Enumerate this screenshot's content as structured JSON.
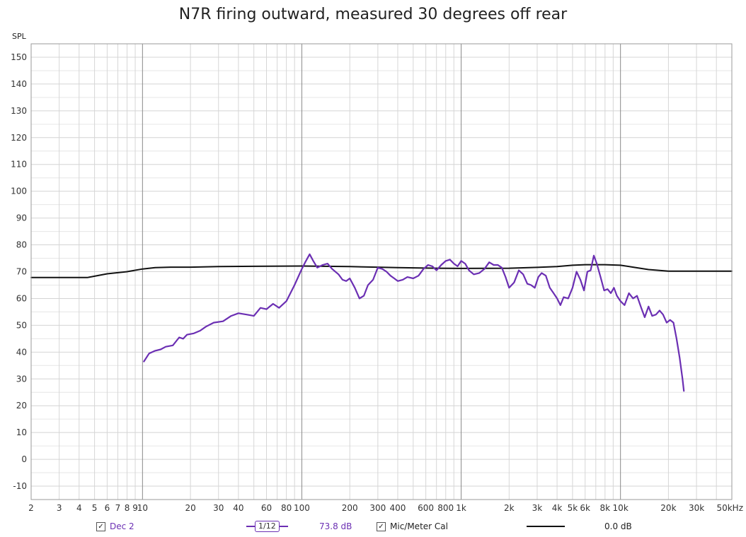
{
  "chart_data": {
    "type": "line",
    "title": "N7R firing outward, measured 30 degrees off rear",
    "ylabel": "SPL",
    "xlabel": "",
    "xscale": "log",
    "xlim": [
      2,
      50000
    ],
    "ylim": [
      -15,
      155
    ],
    "y_ticks": [
      -10,
      0,
      10,
      20,
      30,
      40,
      50,
      60,
      70,
      80,
      90,
      100,
      110,
      120,
      130,
      140,
      150
    ],
    "x_ticks": [
      {
        "v": 2,
        "label": "2"
      },
      {
        "v": 3,
        "label": "3"
      },
      {
        "v": 4,
        "label": "4"
      },
      {
        "v": 5,
        "label": "5"
      },
      {
        "v": 6,
        "label": "6"
      },
      {
        "v": 7,
        "label": "7"
      },
      {
        "v": 8,
        "label": "8"
      },
      {
        "v": 9,
        "label": "9"
      },
      {
        "v": 10,
        "label": "10"
      },
      {
        "v": 20,
        "label": "20"
      },
      {
        "v": 30,
        "label": "30"
      },
      {
        "v": 40,
        "label": "40"
      },
      {
        "v": 60,
        "label": "60"
      },
      {
        "v": 80,
        "label": "80"
      },
      {
        "v": 100,
        "label": "100"
      },
      {
        "v": 200,
        "label": "200"
      },
      {
        "v": 300,
        "label": "300"
      },
      {
        "v": 400,
        "label": "400"
      },
      {
        "v": 600,
        "label": "600"
      },
      {
        "v": 800,
        "label": "800"
      },
      {
        "v": 1000,
        "label": "1k"
      },
      {
        "v": 2000,
        "label": "2k"
      },
      {
        "v": 3000,
        "label": "3k"
      },
      {
        "v": 4000,
        "label": "4k"
      },
      {
        "v": 5000,
        "label": "5k"
      },
      {
        "v": 6000,
        "label": "6k"
      },
      {
        "v": 8000,
        "label": "8k"
      },
      {
        "v": 10000,
        "label": "10k"
      },
      {
        "v": 20000,
        "label": "20k"
      },
      {
        "v": 30000,
        "label": "30k"
      },
      {
        "v": 50000,
        "label": "50kHz"
      }
    ],
    "grid": true,
    "series": [
      {
        "name": "Dec 2",
        "color": "#6b2fb3",
        "points": [
          [
            10.2,
            36.5
          ],
          [
            11,
            39.5
          ],
          [
            12,
            40.5
          ],
          [
            13,
            41
          ],
          [
            14,
            42
          ],
          [
            15.5,
            42.5
          ],
          [
            17,
            45.5
          ],
          [
            18,
            45
          ],
          [
            19,
            46.5
          ],
          [
            21,
            47
          ],
          [
            23,
            48
          ],
          [
            25,
            49.5
          ],
          [
            28,
            51
          ],
          [
            32,
            51.5
          ],
          [
            36,
            53.5
          ],
          [
            40,
            54.5
          ],
          [
            45,
            54
          ],
          [
            50,
            53.5
          ],
          [
            55,
            56.5
          ],
          [
            60,
            56
          ],
          [
            66,
            58
          ],
          [
            72,
            56.5
          ],
          [
            80,
            59
          ],
          [
            90,
            65
          ],
          [
            100,
            71
          ],
          [
            105,
            73.5
          ],
          [
            112,
            76.5
          ],
          [
            118,
            74
          ],
          [
            125,
            71.5
          ],
          [
            135,
            72.5
          ],
          [
            145,
            73
          ],
          [
            155,
            71
          ],
          [
            170,
            69
          ],
          [
            180,
            67
          ],
          [
            190,
            66.5
          ],
          [
            200,
            67.5
          ],
          [
            215,
            64
          ],
          [
            230,
            60
          ],
          [
            245,
            61
          ],
          [
            260,
            65
          ],
          [
            280,
            67
          ],
          [
            300,
            71.5
          ],
          [
            320,
            71
          ],
          [
            340,
            70
          ],
          [
            360,
            68.5
          ],
          [
            380,
            67.5
          ],
          [
            400,
            66.5
          ],
          [
            430,
            67
          ],
          [
            460,
            68
          ],
          [
            500,
            67.5
          ],
          [
            540,
            68.5
          ],
          [
            580,
            71
          ],
          [
            620,
            72.5
          ],
          [
            660,
            72
          ],
          [
            700,
            70.5
          ],
          [
            750,
            72.5
          ],
          [
            800,
            74
          ],
          [
            850,
            74.5
          ],
          [
            900,
            73
          ],
          [
            950,
            72
          ],
          [
            1000,
            74
          ],
          [
            1060,
            73
          ],
          [
            1120,
            70.5
          ],
          [
            1200,
            69
          ],
          [
            1300,
            69.5
          ],
          [
            1400,
            71
          ],
          [
            1500,
            73.5
          ],
          [
            1600,
            72.5
          ],
          [
            1700,
            72.5
          ],
          [
            1800,
            71.5
          ],
          [
            1900,
            68
          ],
          [
            2000,
            64
          ],
          [
            2150,
            66
          ],
          [
            2300,
            70.5
          ],
          [
            2450,
            69
          ],
          [
            2600,
            65.5
          ],
          [
            2750,
            65
          ],
          [
            2900,
            64
          ],
          [
            3050,
            68
          ],
          [
            3200,
            69.5
          ],
          [
            3400,
            68.5
          ],
          [
            3600,
            64
          ],
          [
            3800,
            62
          ],
          [
            4000,
            60
          ],
          [
            4200,
            57.5
          ],
          [
            4400,
            60.5
          ],
          [
            4700,
            60
          ],
          [
            5000,
            64
          ],
          [
            5300,
            70
          ],
          [
            5600,
            67
          ],
          [
            5900,
            63
          ],
          [
            6200,
            70
          ],
          [
            6500,
            70.5
          ],
          [
            6800,
            76
          ],
          [
            7100,
            73
          ],
          [
            7500,
            68
          ],
          [
            7900,
            63
          ],
          [
            8300,
            63.5
          ],
          [
            8700,
            62
          ],
          [
            9100,
            64
          ],
          [
            9500,
            61
          ],
          [
            10000,
            59
          ],
          [
            10600,
            57.5
          ],
          [
            11300,
            62
          ],
          [
            12000,
            60
          ],
          [
            12700,
            61
          ],
          [
            13500,
            56.5
          ],
          [
            14200,
            53
          ],
          [
            15000,
            57
          ],
          [
            15800,
            53.5
          ],
          [
            16700,
            54
          ],
          [
            17600,
            55.5
          ],
          [
            18500,
            54
          ],
          [
            19500,
            51
          ],
          [
            20500,
            52
          ],
          [
            21500,
            51
          ],
          [
            22500,
            45
          ],
          [
            23500,
            38
          ],
          [
            24500,
            30
          ],
          [
            25000,
            25.5
          ]
        ]
      },
      {
        "name": "Mic/Meter Cal",
        "color": "#111111",
        "points": [
          [
            2,
            67.8
          ],
          [
            3,
            67.8
          ],
          [
            4.5,
            67.8
          ],
          [
            5,
            68.3
          ],
          [
            6,
            69.2
          ],
          [
            8,
            70
          ],
          [
            10,
            71
          ],
          [
            12,
            71.5
          ],
          [
            15,
            71.7
          ],
          [
            20,
            71.7
          ],
          [
            30,
            71.9
          ],
          [
            50,
            72
          ],
          [
            100,
            72.1
          ],
          [
            200,
            71.9
          ],
          [
            400,
            71.5
          ],
          [
            700,
            71.3
          ],
          [
            1000,
            71.2
          ],
          [
            2000,
            71.3
          ],
          [
            3000,
            71.6
          ],
          [
            4000,
            71.9
          ],
          [
            5000,
            72.4
          ],
          [
            6000,
            72.6
          ],
          [
            8000,
            72.6
          ],
          [
            10000,
            72.4
          ],
          [
            12000,
            71.7
          ],
          [
            15000,
            70.8
          ],
          [
            20000,
            70.2
          ],
          [
            30000,
            70.2
          ],
          [
            50000,
            70.2
          ]
        ]
      }
    ]
  },
  "legend": {
    "dec2_label": "Dec 2",
    "smoothing": "1/12",
    "dec2_value": "73.8 dB",
    "cal_label": "Mic/Meter Cal",
    "cal_value": "0.0 dB",
    "check": "✓"
  }
}
